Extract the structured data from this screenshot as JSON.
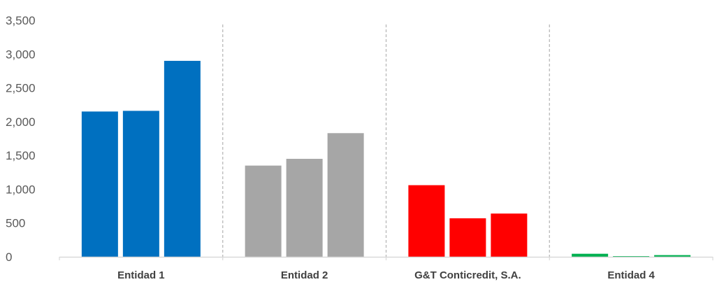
{
  "chart_data": {
    "type": "bar",
    "title": "",
    "xlabel": "",
    "ylabel": "",
    "ylim": [
      0,
      3500
    ],
    "yticks": [
      0,
      500,
      1000,
      1500,
      2000,
      2500,
      3000,
      3500
    ],
    "ytick_labels": [
      "0",
      "500",
      "1,000",
      "1,500",
      "2,000",
      "2,500",
      "3,000",
      "3,500"
    ],
    "grid": false,
    "legend": "none",
    "group_separators": "dashed",
    "categories": [
      "Entidad 1",
      "Entidad 2",
      "G&T Conticredit, S.A.",
      "Entidad 4"
    ],
    "category_colors": [
      "#0070c0",
      "#a6a6a6",
      "#ff0000",
      "#00b050"
    ],
    "series": [
      {
        "values": [
          2150,
          1350,
          1060,
          45
        ]
      },
      {
        "values": [
          2160,
          1450,
          570,
          10
        ]
      },
      {
        "values": [
          2900,
          1830,
          640,
          25
        ]
      }
    ]
  }
}
